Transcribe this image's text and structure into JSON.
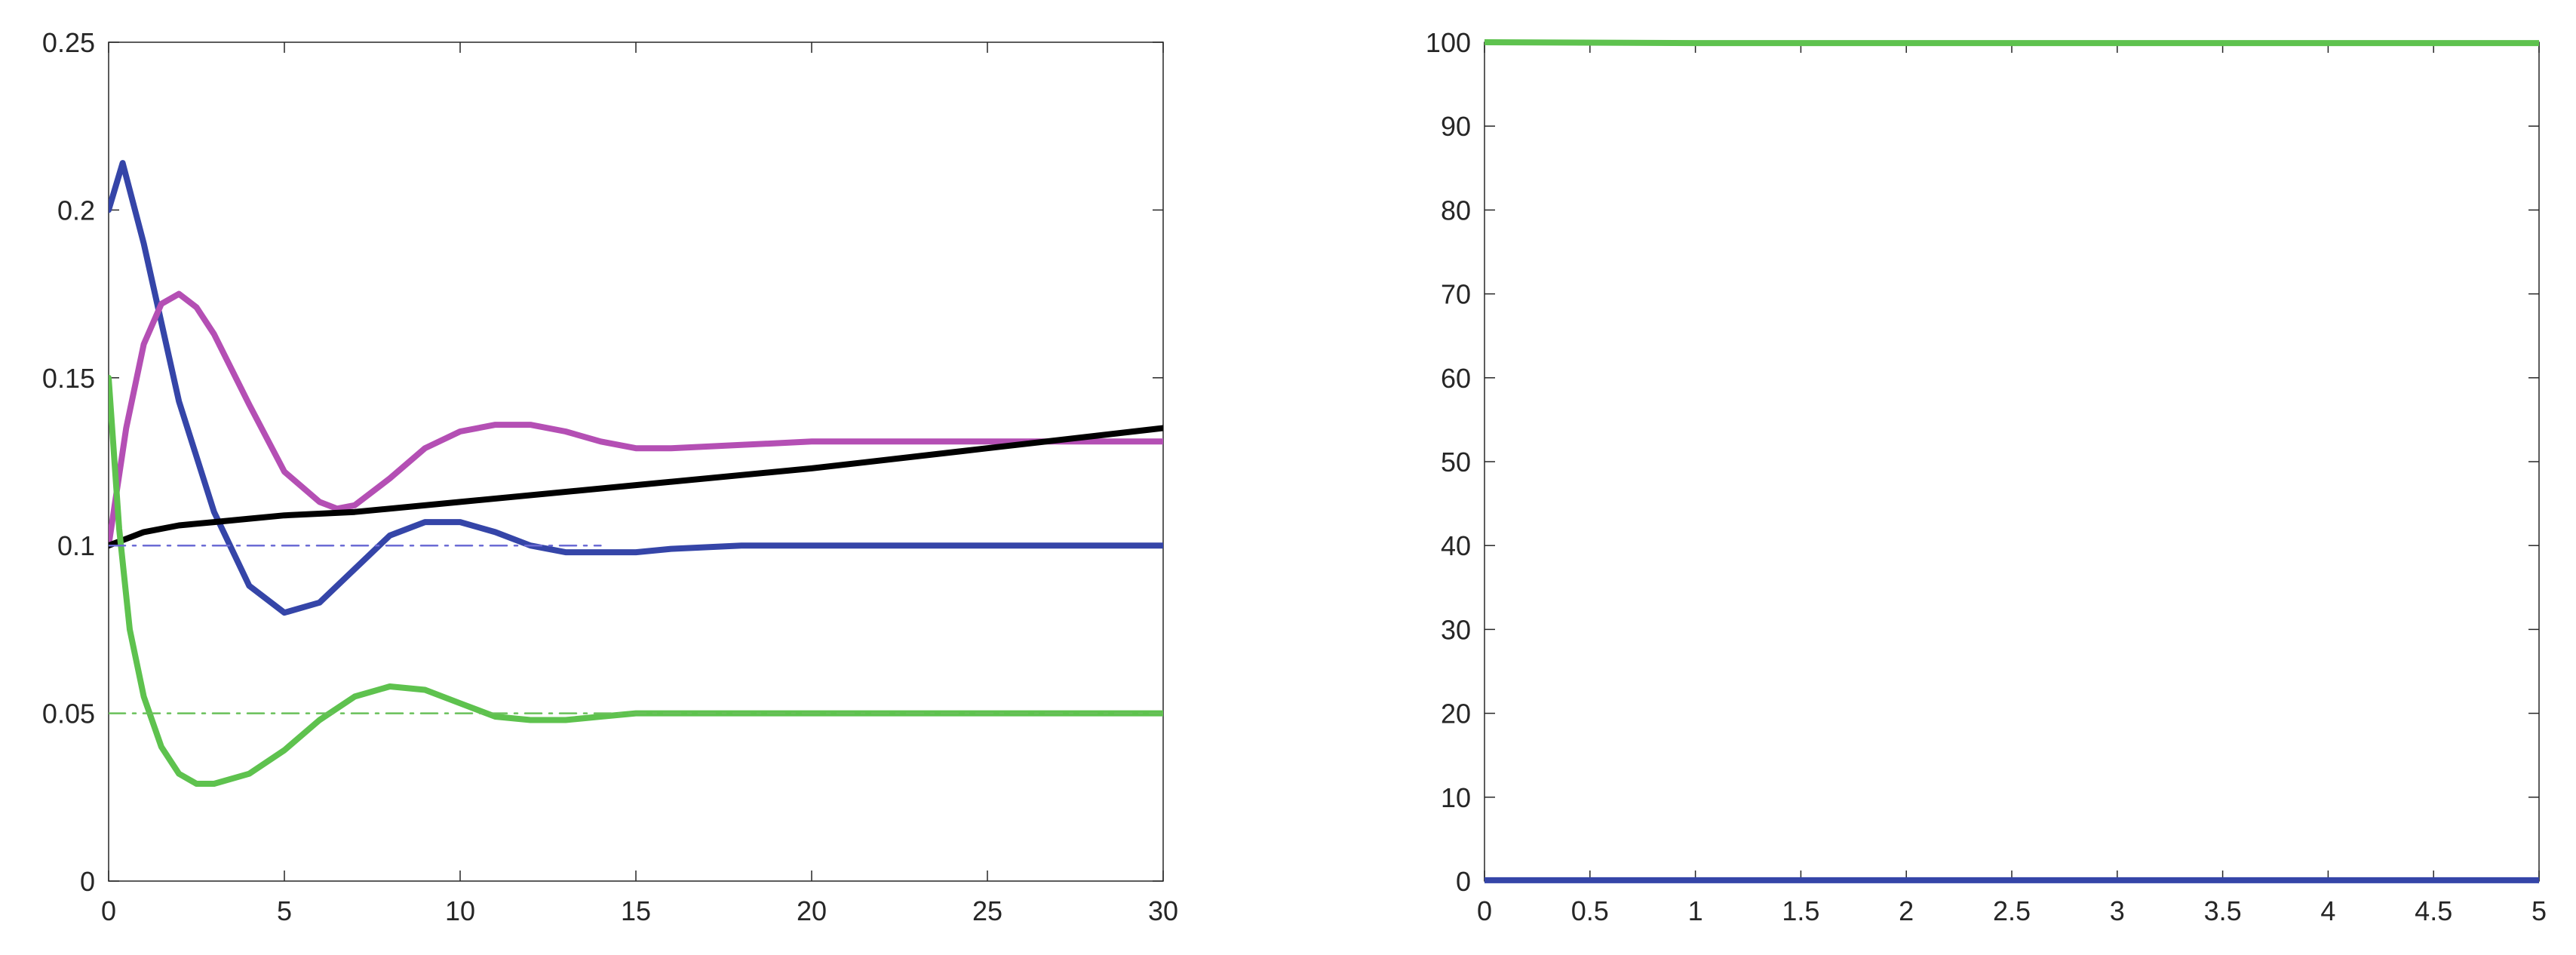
{
  "chart_data": [
    {
      "type": "line",
      "title": "",
      "xlabel": "",
      "ylabel": "",
      "xlim": [
        0,
        30
      ],
      "ylim": [
        0,
        0.25
      ],
      "xticks": [
        {
          "value": 0,
          "label": "0"
        },
        {
          "value": 5,
          "label": "5"
        },
        {
          "value": 10,
          "label": "10"
        },
        {
          "value": 15,
          "label": "15"
        },
        {
          "value": 20,
          "label": "20"
        },
        {
          "value": 25,
          "label": "25"
        },
        {
          "value": 30,
          "label": "30"
        }
      ],
      "yticks": [
        {
          "value": 0,
          "label": "0"
        },
        {
          "value": 0.05,
          "label": "0.05"
        },
        {
          "value": 0.1,
          "label": "0.1"
        },
        {
          "value": 0.15,
          "label": "0.15"
        },
        {
          "value": 0.2,
          "label": "0.2"
        },
        {
          "value": 0.25,
          "label": "0.25"
        }
      ],
      "grid": false,
      "legend": "none",
      "series": [
        {
          "color": "#3545a8",
          "style": "solid",
          "x": [
            0,
            0.4,
            1,
            2,
            3,
            4,
            5,
            6,
            7,
            8,
            9,
            10,
            11,
            12,
            13,
            14,
            15,
            16,
            18,
            20,
            22,
            25,
            30
          ],
          "y": [
            0.2,
            0.214,
            0.19,
            0.143,
            0.11,
            0.088,
            0.08,
            0.083,
            0.093,
            0.103,
            0.107,
            0.107,
            0.104,
            0.1,
            0.098,
            0.098,
            0.098,
            0.099,
            0.1,
            0.1,
            0.1,
            0.1,
            0.1
          ]
        },
        {
          "color": "#b44fb4",
          "style": "solid",
          "x": [
            0,
            0.5,
            1,
            1.5,
            2,
            2.5,
            3,
            4,
            5,
            6,
            6.5,
            7,
            8,
            9,
            10,
            11,
            12,
            13,
            14,
            15,
            16,
            18,
            20,
            22,
            25,
            30
          ],
          "y": [
            0.1,
            0.135,
            0.16,
            0.172,
            0.175,
            0.171,
            0.163,
            0.142,
            0.122,
            0.113,
            0.111,
            0.112,
            0.12,
            0.129,
            0.134,
            0.136,
            0.136,
            0.134,
            0.131,
            0.129,
            0.129,
            0.13,
            0.131,
            0.131,
            0.131,
            0.131
          ]
        },
        {
          "color": "#000000",
          "style": "solid",
          "x": [
            0,
            0.5,
            1,
            2,
            3,
            4,
            5,
            7,
            10,
            15,
            20,
            25,
            30
          ],
          "y": [
            0.1,
            0.102,
            0.104,
            0.106,
            0.107,
            0.108,
            0.109,
            0.11,
            0.113,
            0.118,
            0.123,
            0.129,
            0.135
          ]
        },
        {
          "color": "#5ec24e",
          "style": "solid",
          "x": [
            0,
            0.3,
            0.6,
            1,
            1.5,
            2,
            2.5,
            3,
            4,
            5,
            6,
            7,
            8,
            9,
            10,
            11,
            12,
            13,
            14,
            15,
            16,
            18,
            20,
            25,
            30
          ],
          "y": [
            0.15,
            0.105,
            0.075,
            0.055,
            0.04,
            0.032,
            0.029,
            0.029,
            0.032,
            0.039,
            0.048,
            0.055,
            0.058,
            0.057,
            0.053,
            0.049,
            0.048,
            0.048,
            0.049,
            0.05,
            0.05,
            0.05,
            0.05,
            0.05,
            0.05
          ]
        },
        {
          "color": "#6b6bd4",
          "style": "dashdot",
          "x": [
            0,
            14
          ],
          "y": [
            0.1,
            0.1
          ]
        },
        {
          "color": "#69c05a",
          "style": "dashdot",
          "x": [
            0,
            30
          ],
          "y": [
            0.05,
            0.05
          ]
        }
      ]
    },
    {
      "type": "line",
      "title": "",
      "xlabel": "",
      "ylabel": "",
      "xlim": [
        0,
        5
      ],
      "ylim": [
        0,
        100
      ],
      "xticks": [
        {
          "value": 0,
          "label": "0"
        },
        {
          "value": 0.5,
          "label": "0.5"
        },
        {
          "value": 1,
          "label": "1"
        },
        {
          "value": 1.5,
          "label": "1.5"
        },
        {
          "value": 2,
          "label": "2"
        },
        {
          "value": 2.5,
          "label": "2.5"
        },
        {
          "value": 3,
          "label": "3"
        },
        {
          "value": 3.5,
          "label": "3.5"
        },
        {
          "value": 4,
          "label": "4"
        },
        {
          "value": 4.5,
          "label": "4.5"
        },
        {
          "value": 5,
          "label": "5"
        }
      ],
      "yticks": [
        {
          "value": 0,
          "label": "0"
        },
        {
          "value": 10,
          "label": "10"
        },
        {
          "value": 20,
          "label": "20"
        },
        {
          "value": 30,
          "label": "30"
        },
        {
          "value": 40,
          "label": "40"
        },
        {
          "value": 50,
          "label": "50"
        },
        {
          "value": 60,
          "label": "60"
        },
        {
          "value": 70,
          "label": "70"
        },
        {
          "value": 80,
          "label": "80"
        },
        {
          "value": 90,
          "label": "90"
        },
        {
          "value": 100,
          "label": "100"
        }
      ],
      "grid": false,
      "legend": "none",
      "series": [
        {
          "color": "#5ec24e",
          "style": "solid",
          "x": [
            0,
            1,
            2,
            3,
            4,
            5
          ],
          "y": [
            100,
            99.9,
            99.9,
            99.9,
            99.9,
            99.9
          ]
        },
        {
          "color": "#3545a8",
          "style": "solid",
          "x": [
            0,
            1,
            2,
            3,
            4,
            5
          ],
          "y": [
            0.1,
            0.1,
            0.1,
            0.1,
            0.1,
            0.1
          ]
        }
      ]
    }
  ]
}
